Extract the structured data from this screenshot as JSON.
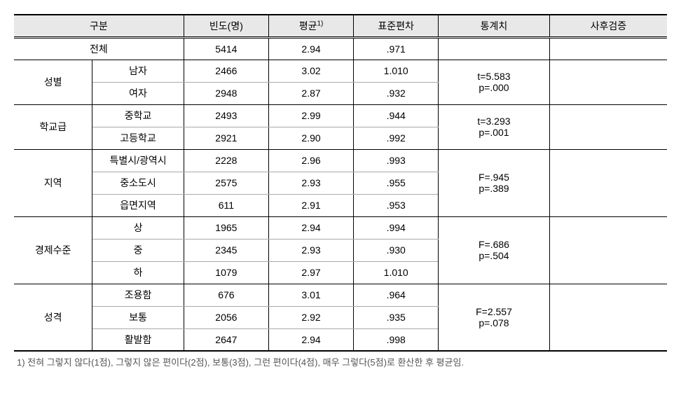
{
  "headers": {
    "category": "구분",
    "frequency": "빈도(명)",
    "mean": "평균",
    "mean_sup": "1)",
    "sd": "표준편차",
    "statistic": "통계치",
    "posthoc": "사후검증"
  },
  "total": {
    "label": "전체",
    "freq": "5414",
    "mean": "2.94",
    "sd": ".971"
  },
  "sections": [
    {
      "group": "성별",
      "stat": [
        "t=5.583",
        "p=.000"
      ],
      "rows": [
        {
          "label": "남자",
          "freq": "2466",
          "mean": "3.02",
          "sd": "1.010"
        },
        {
          "label": "여자",
          "freq": "2948",
          "mean": "2.87",
          "sd": ".932"
        }
      ]
    },
    {
      "group": "학교급",
      "stat": [
        "t=3.293",
        "p=.001"
      ],
      "rows": [
        {
          "label": "중학교",
          "freq": "2493",
          "mean": "2.99",
          "sd": ".944"
        },
        {
          "label": "고등학교",
          "freq": "2921",
          "mean": "2.90",
          "sd": ".992"
        }
      ]
    },
    {
      "group": "지역",
      "stat": [
        "F=.945",
        "p=.389"
      ],
      "rows": [
        {
          "label": "특별시/광역시",
          "freq": "2228",
          "mean": "2.96",
          "sd": ".993"
        },
        {
          "label": "중소도시",
          "freq": "2575",
          "mean": "2.93",
          "sd": ".955"
        },
        {
          "label": "읍면지역",
          "freq": "611",
          "mean": "2.91",
          "sd": ".953"
        }
      ]
    },
    {
      "group": "경제수준",
      "stat": [
        "F=.686",
        "p=.504"
      ],
      "rows": [
        {
          "label": "상",
          "freq": "1965",
          "mean": "2.94",
          "sd": ".994"
        },
        {
          "label": "중",
          "freq": "2345",
          "mean": "2.93",
          "sd": ".930"
        },
        {
          "label": "하",
          "freq": "1079",
          "mean": "2.97",
          "sd": "1.010"
        }
      ]
    },
    {
      "group": "성격",
      "stat": [
        "F=2.557",
        "p=.078"
      ],
      "rows": [
        {
          "label": "조용함",
          "freq": "676",
          "mean": "3.01",
          "sd": ".964"
        },
        {
          "label": "보통",
          "freq": "2056",
          "mean": "2.92",
          "sd": ".935"
        },
        {
          "label": "활발함",
          "freq": "2647",
          "mean": "2.94",
          "sd": ".998"
        }
      ]
    }
  ],
  "footnote": "1) 전혀 그렇지 않다(1점), 그렇지 않은 편이다(2점), 보통(3점), 그런 편이다(4점), 매우 그렇다(5점)로 환산한 후 평균임.",
  "colors": {
    "header_bg": "#e8e8e8",
    "border": "#000000",
    "thin_border": "#aaaaaa",
    "footnote_text": "#555555",
    "background": "#ffffff"
  }
}
